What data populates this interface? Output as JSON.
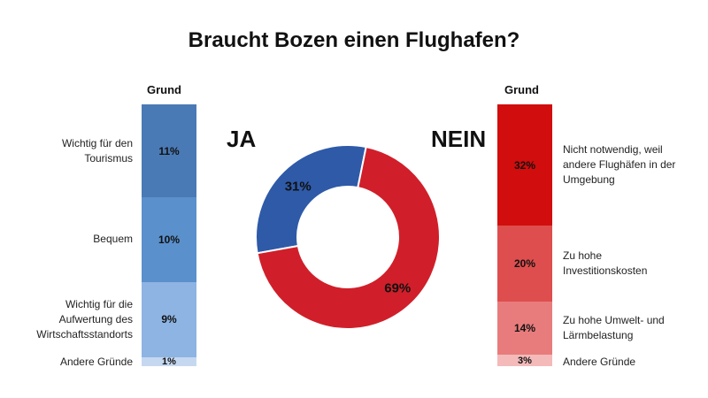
{
  "chart_data": [
    {
      "type": "pie",
      "variant": "donut",
      "title": "Braucht Bozen einen Flughafen?",
      "slices": [
        {
          "label": "JA",
          "value": 31,
          "display": "31%",
          "color": "#2e5aa8"
        },
        {
          "label": "NEIN",
          "value": 69,
          "display": "69%",
          "color": "#d01f2a"
        }
      ]
    },
    {
      "type": "bar",
      "variant": "stacked-100",
      "header": "Grund",
      "group": "JA",
      "categories": [
        "Wichtig für den Tourismus",
        "Bequem",
        "Wichtig für die Aufwertung des Wirtschaftsstandorts",
        "Andere Gründe"
      ],
      "values": [
        11,
        10,
        9,
        1
      ],
      "labels": [
        "11%",
        "10%",
        "9%",
        "1%"
      ],
      "colors": [
        "#4a7ab5",
        "#5a90cc",
        "#8db4e2",
        "#c5d8f0"
      ]
    },
    {
      "type": "bar",
      "variant": "stacked-100",
      "header": "Grund",
      "group": "NEIN",
      "categories": [
        "Nicht notwendig, weil andere Flughäfen in der Umgebung",
        "Zu hohe Investitionskosten",
        "Zu hohe Umwelt- und Lärmbelastung",
        "Andere Gründe"
      ],
      "values": [
        32,
        20,
        14,
        3
      ],
      "labels": [
        "32%",
        "20%",
        "14%",
        "3%"
      ],
      "colors": [
        "#d10d0d",
        "#de4e4e",
        "#e87c7c",
        "#f4baba"
      ]
    }
  ]
}
